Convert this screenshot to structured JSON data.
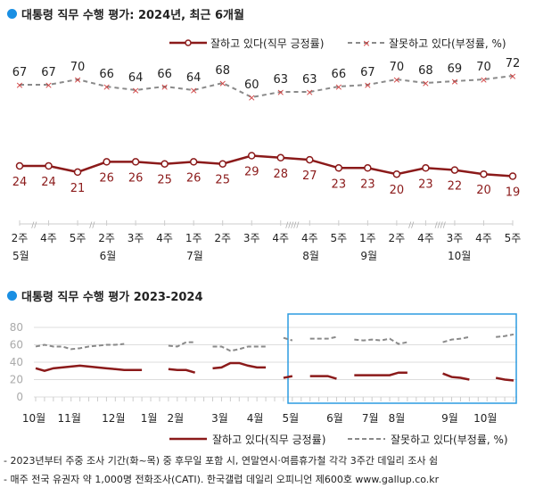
{
  "colors": {
    "positive": "#8b1a1a",
    "negative": "#8a8a8a",
    "negative_marker": "#d04040",
    "accent": "#1a8fe3",
    "highlight": "#2b9be0"
  },
  "chart_data": [
    {
      "type": "line",
      "title": "대통령 직무 수행 평가: 2024년, 최근 6개월",
      "legend_placement": "top-right",
      "categories": [
        "2주",
        "4주",
        "5주",
        "2주",
        "3주",
        "4주",
        "1주",
        "2주",
        "3주",
        "4주",
        "4주",
        "5주",
        "1주",
        "2주",
        "4주",
        "3주",
        "4주",
        "5주"
      ],
      "month_labels": [
        {
          "index": 0,
          "label": "5월"
        },
        {
          "index": 3,
          "label": "6월"
        },
        {
          "index": 6,
          "label": "7월"
        },
        {
          "index": 10,
          "label": "8월"
        },
        {
          "index": 12,
          "label": "9월"
        },
        {
          "index": 15,
          "label": "10월"
        }
      ],
      "series": [
        {
          "name": "잘하고 있다(직무 긍정률)",
          "values": [
            24,
            24,
            21,
            26,
            26,
            25,
            26,
            25,
            29,
            28,
            27,
            23,
            23,
            20,
            23,
            22,
            20,
            19
          ]
        },
        {
          "name": "잘못하고 있다(부정률, %)",
          "values": [
            67,
            67,
            70,
            66,
            64,
            66,
            64,
            68,
            60,
            63,
            63,
            66,
            67,
            70,
            68,
            69,
            70,
            72
          ]
        }
      ]
    },
    {
      "type": "line",
      "title": "대통령 직무 수행 평가 2023-2024",
      "legend_placement": "bottom-right",
      "grid": true,
      "ylim": [
        0,
        80
      ],
      "yticks": [
        "0",
        "20",
        "40",
        "60",
        "80"
      ],
      "month_labels": [
        {
          "index": 0,
          "label": "10월"
        },
        {
          "index": 4,
          "label": "11월"
        },
        {
          "index": 9,
          "label": "12월"
        },
        {
          "index": 13,
          "label": "1월"
        },
        {
          "index": 16,
          "label": "2월"
        },
        {
          "index": 21,
          "label": "3월"
        },
        {
          "index": 25,
          "label": "4월"
        },
        {
          "index": 29,
          "label": "5월"
        },
        {
          "index": 34,
          "label": "6월"
        },
        {
          "index": 38,
          "label": "7월"
        },
        {
          "index": 41,
          "label": "8월"
        },
        {
          "index": 47,
          "label": "9월"
        },
        {
          "index": 51,
          "label": "10월"
        }
      ],
      "series": [
        {
          "name": "잘하고 있다(직무 긍정률)",
          "values": [
            33,
            30,
            33,
            34,
            35,
            36,
            35,
            34,
            33,
            32,
            31,
            31,
            31,
            null,
            null,
            32,
            31,
            31,
            28,
            null,
            33,
            34,
            39,
            39,
            36,
            34,
            34,
            null,
            22,
            24,
            null,
            24,
            24,
            24,
            21,
            null,
            25,
            25,
            25,
            25,
            25,
            28,
            28,
            null,
            null,
            null,
            27,
            23,
            22,
            20,
            null,
            null,
            22,
            20,
            19
          ]
        },
        {
          "name": "잘못하고 있다(부정률, %)",
          "values": [
            58,
            60,
            58,
            58,
            55,
            56,
            58,
            59,
            60,
            60,
            61,
            null,
            null,
            null,
            null,
            59,
            58,
            63,
            63,
            null,
            58,
            58,
            53,
            55,
            58,
            58,
            58,
            null,
            68,
            65,
            null,
            67,
            67,
            67,
            69,
            null,
            66,
            65,
            66,
            65,
            67,
            61,
            63,
            null,
            null,
            null,
            63,
            66,
            67,
            69,
            null,
            null,
            69,
            70,
            72
          ]
        }
      ]
    }
  ],
  "notes": [
    "- 2023년부터 주중 조사 기간(화~목) 중 후무일 포함 시, 연말연시·여름휴가철 각각 3주간 데일리 조사 쉼",
    "- 매주 전국 유권자 약 1,000명 전화조사(CATI). 한국갤럽 데일리 오피니언 제600호 www.gallup.co.kr"
  ]
}
